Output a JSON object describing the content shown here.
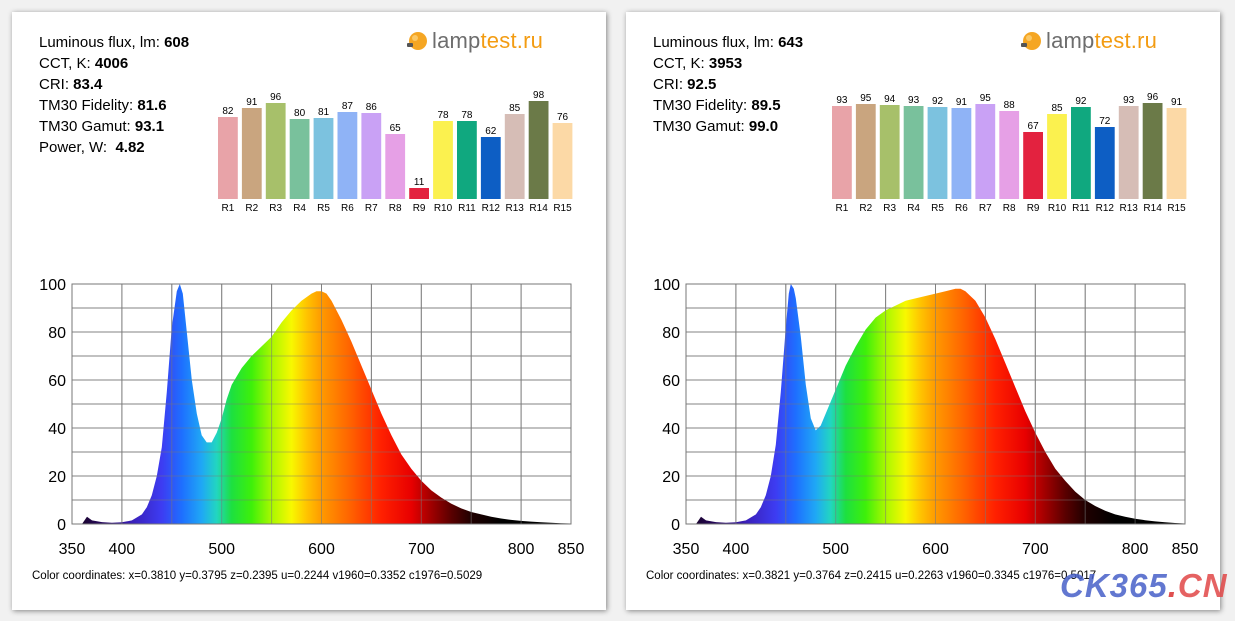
{
  "logo": {
    "part1": "lamp",
    "part2": "test.ru"
  },
  "panels": [
    {
      "params": [
        {
          "label": "Luminous flux, lm:",
          "value": "608"
        },
        {
          "label": "CCT, K:",
          "value": "4006"
        },
        {
          "label": "CRI:",
          "value": "83.4"
        },
        {
          "label": "TM30 Fidelity:",
          "value": "81.6"
        },
        {
          "label": "TM30 Gamut:",
          "value": "93.1"
        },
        {
          "label": "Power, W:",
          "value": "4.82"
        }
      ],
      "coords": "Color coordinates: x=0.3810 y=0.3795 z=0.2395 u=0.2244 v1960=0.3352 c1976=0.5029"
    },
    {
      "params": [
        {
          "label": "Luminous flux, lm:",
          "value": "643"
        },
        {
          "label": "CCT, K:",
          "value": "3953"
        },
        {
          "label": "CRI:",
          "value": "92.5"
        },
        {
          "label": "TM30 Fidelity:",
          "value": "89.5"
        },
        {
          "label": "TM30 Gamut:",
          "value": "99.0"
        }
      ],
      "coords": "Color coordinates: x=0.3821 y=0.3764 z=0.2415 u=0.2263 v1960=0.3345 c1976=0.5017"
    }
  ],
  "colors": {
    "cri_bars": [
      "#e8a3a8",
      "#c9a57f",
      "#a7c06a",
      "#79c19c",
      "#7cc2df",
      "#8fb3f6",
      "#c9a1f5",
      "#e6a0e6",
      "#e3223f",
      "#fbf14f",
      "#10a87f",
      "#0d5ec4",
      "#d6bdb6",
      "#6b7a48",
      "#fcd9a6"
    ],
    "grid": "#8c8c8c"
  },
  "chart_data": [
    {
      "type": "bar",
      "categories": [
        "R1",
        "R2",
        "R3",
        "R4",
        "R5",
        "R6",
        "R7",
        "R8",
        "R9",
        "R10",
        "R11",
        "R12",
        "R13",
        "R14",
        "R15"
      ],
      "values": [
        82,
        91,
        96,
        80,
        81,
        87,
        86,
        65,
        11,
        78,
        78,
        62,
        85,
        98,
        76
      ],
      "ylim": [
        0,
        100
      ]
    },
    {
      "type": "area",
      "xlim": [
        350,
        850
      ],
      "ylim": [
        0,
        100
      ],
      "x_ticks": [
        350,
        400,
        500,
        600,
        700,
        800,
        850
      ],
      "y_ticks": [
        0,
        20,
        40,
        60,
        80,
        100
      ],
      "x": [
        350,
        355,
        360,
        365,
        370,
        380,
        390,
        400,
        410,
        420,
        425,
        430,
        435,
        440,
        445,
        450,
        455,
        458,
        461,
        465,
        470,
        475,
        480,
        485,
        490,
        495,
        500,
        505,
        510,
        520,
        530,
        540,
        550,
        560,
        570,
        580,
        590,
        595,
        600,
        605,
        610,
        620,
        630,
        640,
        650,
        660,
        670,
        680,
        690,
        700,
        710,
        720,
        730,
        740,
        750,
        760,
        770,
        780,
        790,
        800,
        810,
        820,
        830,
        840,
        850
      ],
      "y": [
        0,
        0,
        0,
        3,
        1.5,
        0.8,
        0.5,
        0.7,
        1.5,
        4,
        7,
        12,
        20,
        32,
        55,
        82,
        97,
        100,
        96,
        80,
        60,
        46,
        37,
        34,
        34,
        38,
        44,
        52,
        58,
        65,
        70,
        74,
        78,
        84,
        89,
        93,
        96,
        97,
        97,
        96,
        93,
        85,
        76,
        66,
        56,
        46,
        37,
        29,
        23,
        18,
        14,
        11,
        8.5,
        6.5,
        5,
        4,
        3,
        2.3,
        1.7,
        1.3,
        1,
        0.7,
        0.5,
        0.3,
        0.2
      ]
    },
    {
      "type": "bar",
      "categories": [
        "R1",
        "R2",
        "R3",
        "R4",
        "R5",
        "R6",
        "R7",
        "R8",
        "R9",
        "R10",
        "R11",
        "R12",
        "R13",
        "R14",
        "R15"
      ],
      "values": [
        93,
        95,
        94,
        93,
        92,
        91,
        95,
        88,
        67,
        85,
        92,
        72,
        93,
        96,
        91
      ],
      "ylim": [
        0,
        100
      ]
    },
    {
      "type": "area",
      "xlim": [
        350,
        850
      ],
      "ylim": [
        0,
        100
      ],
      "x_ticks": [
        350,
        400,
        500,
        600,
        700,
        800,
        850
      ],
      "y_ticks": [
        0,
        20,
        40,
        60,
        80,
        100
      ],
      "x": [
        360,
        365,
        370,
        380,
        390,
        400,
        410,
        420,
        425,
        430,
        435,
        440,
        445,
        450,
        453,
        455,
        458,
        460,
        465,
        470,
        475,
        480,
        485,
        490,
        500,
        510,
        520,
        530,
        540,
        550,
        560,
        570,
        580,
        590,
        600,
        610,
        620,
        625,
        630,
        640,
        650,
        660,
        670,
        680,
        690,
        700,
        710,
        720,
        730,
        740,
        750,
        760,
        770,
        780,
        790,
        800,
        810,
        820,
        830,
        840,
        850
      ],
      "y": [
        0,
        3,
        1.5,
        0.8,
        0.5,
        0.7,
        1.5,
        4,
        7,
        12,
        20,
        33,
        55,
        82,
        96,
        100,
        98,
        94,
        78,
        58,
        44,
        39,
        41,
        46,
        56,
        66,
        74,
        81,
        86,
        89,
        91,
        93,
        94,
        95,
        96,
        97,
        98,
        98,
        97,
        93,
        86,
        77,
        67,
        57,
        47,
        38,
        30,
        23,
        18,
        13.5,
        10,
        7.5,
        5.5,
        4,
        3,
        2.2,
        1.6,
        1.1,
        0.7,
        0.4,
        0.2
      ]
    }
  ]
}
